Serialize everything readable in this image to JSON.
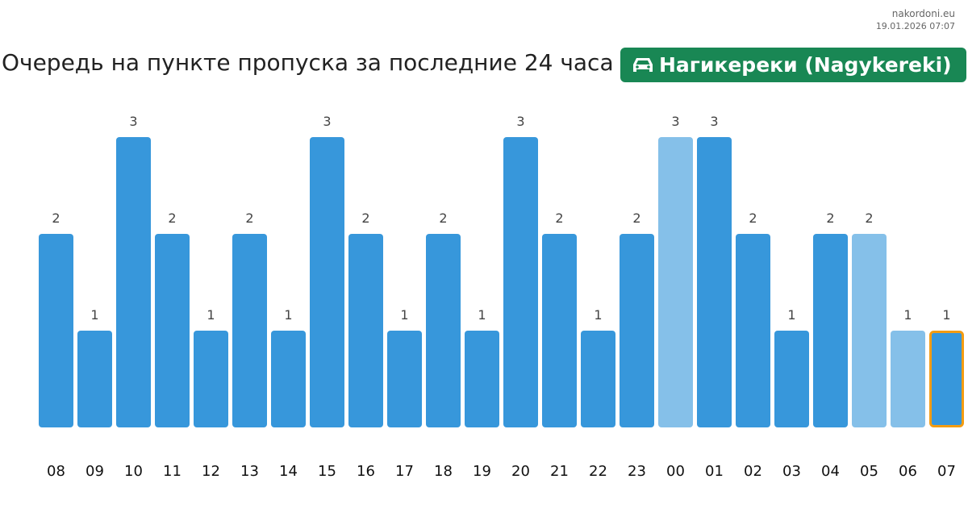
{
  "header": {
    "site": "nakordoni.eu",
    "timestamp": "19.01.2026 07:07",
    "title": "Очередь на пункте пропуска за последние 24 часа",
    "badge_icon": "car-icon",
    "badge_label": "Нагикереки (Nagykereki)"
  },
  "colors": {
    "bar": "#3797db",
    "bar_light": "#85c0e9",
    "highlight_border": "#f39c12",
    "badge": "#198754"
  },
  "chart_data": {
    "type": "bar",
    "title": "Очередь на пункте пропуска за последние 24 часа",
    "categories": [
      "08",
      "09",
      "10",
      "11",
      "12",
      "13",
      "14",
      "15",
      "16",
      "17",
      "18",
      "19",
      "20",
      "21",
      "22",
      "23",
      "00",
      "01",
      "02",
      "03",
      "04",
      "05",
      "06",
      "07"
    ],
    "values": [
      2,
      1,
      3,
      2,
      1,
      2,
      1,
      3,
      2,
      1,
      2,
      1,
      3,
      2,
      1,
      2,
      3,
      3,
      2,
      1,
      2,
      2,
      1,
      1
    ],
    "light_bars": [
      "00",
      "05",
      "06"
    ],
    "highlighted_bar": "07",
    "ylim": [
      0,
      3
    ],
    "grid": false,
    "legend": "none"
  }
}
